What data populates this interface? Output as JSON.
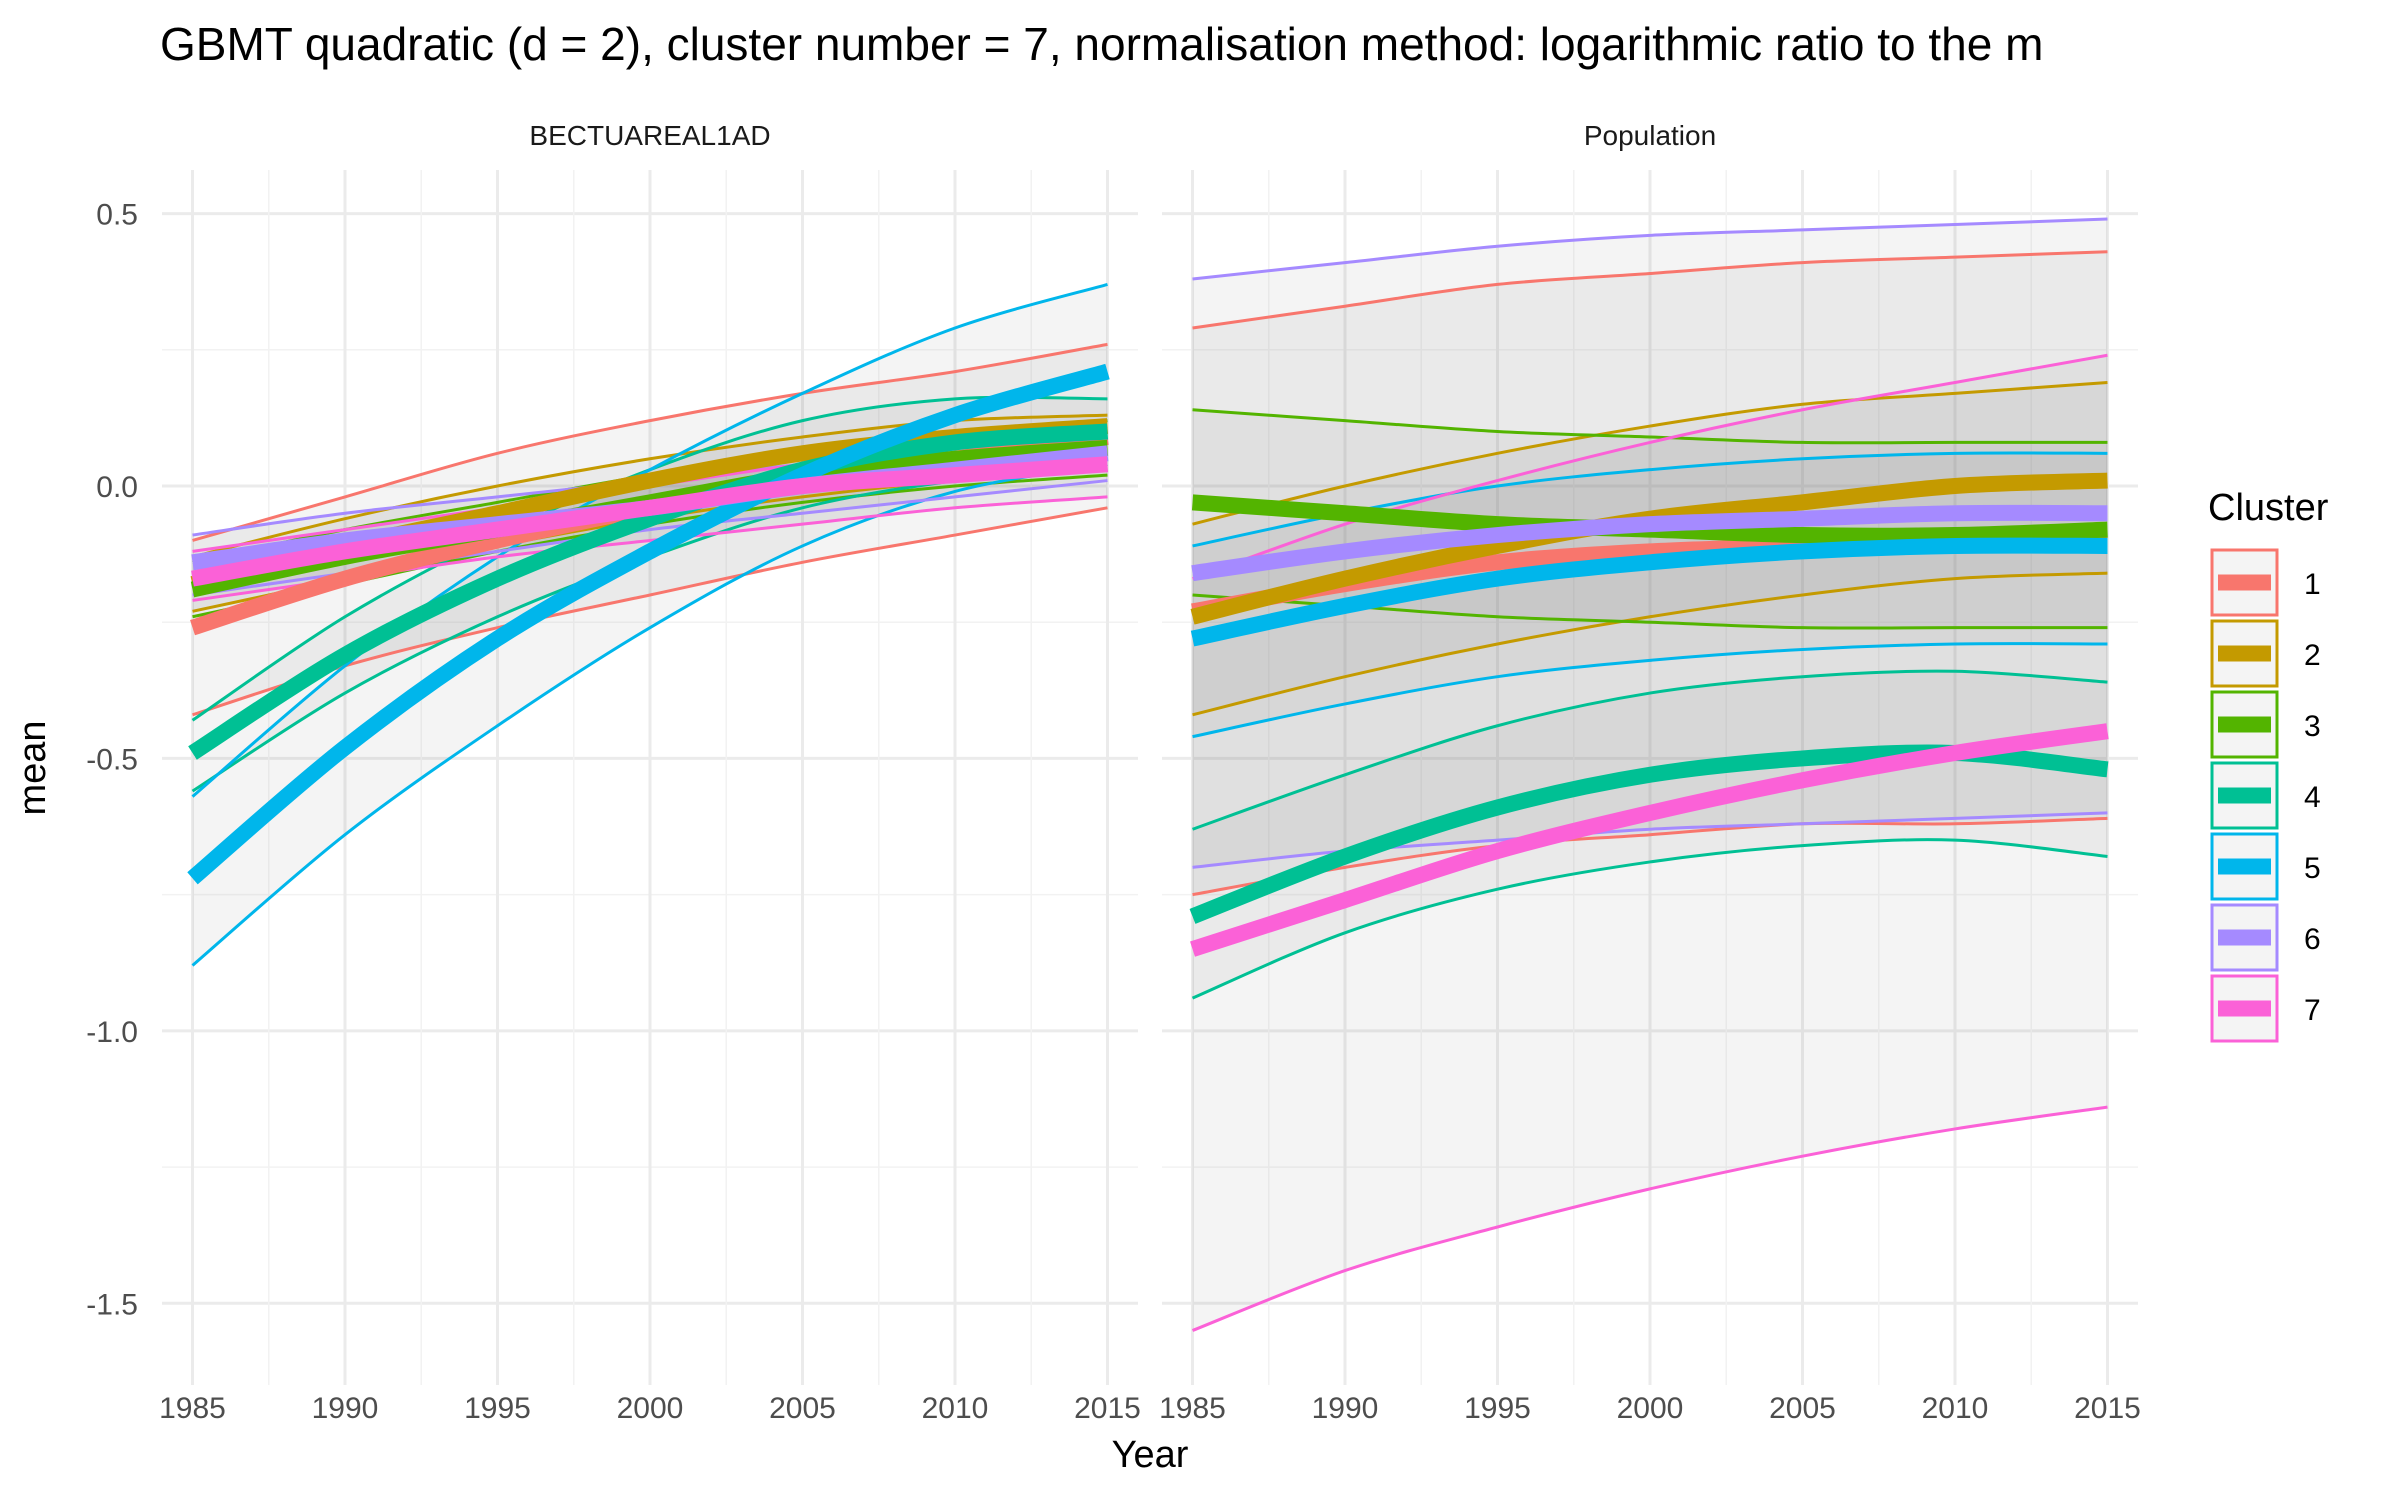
{
  "chart_data": {
    "type": "line",
    "title": "GBMT quadratic (d = 2), cluster number = 7, normalisation method: logarithmic ratio to the m",
    "xlabel": "Year",
    "ylabel": "mean",
    "x": [
      1985,
      1990,
      1995,
      2000,
      2005,
      2010,
      2015
    ],
    "x_ticks": [
      "1985",
      "1990",
      "1995",
      "2000",
      "2005",
      "2010",
      "2015"
    ],
    "xlim": [
      1984,
      2016
    ],
    "y_ticks": [
      0.5,
      0.0,
      -0.5,
      -1.0,
      -1.5
    ],
    "y_tick_labels": [
      "0.5",
      "0.0",
      "-0.5",
      "-1.0",
      "-1.5"
    ],
    "ylim": [
      -1.65,
      0.58
    ],
    "grid": true,
    "legend": {
      "title": "Cluster",
      "position": "right",
      "entries": [
        "1",
        "2",
        "3",
        "4",
        "5",
        "6",
        "7"
      ]
    },
    "colors": {
      "1": "#F8766D",
      "2": "#C49A00",
      "3": "#53B400",
      "4": "#00C094",
      "5": "#00B6EB",
      "6": "#A58AFF",
      "7": "#FB61D7"
    },
    "panels": [
      {
        "name": "BECTUAREAL1AD",
        "series": [
          {
            "cluster": "1",
            "mean": [
              -0.26,
              -0.17,
              -0.1,
              -0.04,
              0.01,
              0.05,
              0.09
            ],
            "lower": [
              -0.42,
              -0.33,
              -0.26,
              -0.2,
              -0.14,
              -0.09,
              -0.04
            ],
            "upper": [
              -0.1,
              -0.02,
              0.06,
              0.12,
              0.17,
              0.21,
              0.26
            ]
          },
          {
            "cluster": "2",
            "mean": [
              -0.18,
              -0.11,
              -0.05,
              0.01,
              0.06,
              0.09,
              0.11
            ],
            "lower": [
              -0.23,
              -0.17,
              -0.11,
              -0.06,
              -0.02,
              0.01,
              0.03
            ],
            "upper": [
              -0.13,
              -0.06,
              0.0,
              0.05,
              0.09,
              0.12,
              0.13
            ]
          },
          {
            "cluster": "3",
            "mean": [
              -0.19,
              -0.13,
              -0.08,
              -0.03,
              0.02,
              0.05,
              0.07
            ],
            "lower": [
              -0.24,
              -0.18,
              -0.12,
              -0.07,
              -0.03,
              0.0,
              0.02
            ],
            "upper": [
              -0.14,
              -0.08,
              -0.03,
              0.02,
              0.06,
              0.09,
              0.12
            ]
          },
          {
            "cluster": "4",
            "mean": [
              -0.49,
              -0.31,
              -0.17,
              -0.06,
              0.03,
              0.08,
              0.1
            ],
            "lower": [
              -0.56,
              -0.38,
              -0.24,
              -0.13,
              -0.04,
              0.01,
              0.04
            ],
            "upper": [
              -0.43,
              -0.24,
              -0.09,
              0.03,
              0.12,
              0.16,
              0.16
            ]
          },
          {
            "cluster": "5",
            "mean": [
              -0.72,
              -0.48,
              -0.28,
              -0.12,
              0.02,
              0.13,
              0.21
            ],
            "lower": [
              -0.88,
              -0.64,
              -0.44,
              -0.26,
              -0.11,
              -0.01,
              0.04
            ],
            "upper": [
              -0.57,
              -0.33,
              -0.13,
              0.03,
              0.17,
              0.29,
              0.37
            ]
          },
          {
            "cluster": "6",
            "mean": [
              -0.14,
              -0.1,
              -0.07,
              -0.04,
              0.0,
              0.03,
              0.06
            ],
            "lower": [
              -0.2,
              -0.16,
              -0.12,
              -0.08,
              -0.05,
              -0.02,
              0.01
            ],
            "upper": [
              -0.09,
              -0.05,
              -0.02,
              0.01,
              0.04,
              0.07,
              0.11
            ]
          },
          {
            "cluster": "7",
            "mean": [
              -0.17,
              -0.12,
              -0.08,
              -0.04,
              0.0,
              0.02,
              0.04
            ],
            "lower": [
              -0.21,
              -0.17,
              -0.13,
              -0.1,
              -0.07,
              -0.04,
              -0.02
            ],
            "upper": [
              -0.12,
              -0.08,
              -0.04,
              0.0,
              0.04,
              0.07,
              0.1
            ]
          }
        ]
      },
      {
        "name": "Population",
        "series": [
          {
            "cluster": "1",
            "mean": [
              -0.23,
              -0.18,
              -0.14,
              -0.12,
              -0.11,
              -0.1,
              -0.1
            ],
            "lower": [
              -0.75,
              -0.7,
              -0.66,
              -0.64,
              -0.62,
              -0.62,
              -0.61
            ],
            "upper": [
              0.29,
              0.33,
              0.37,
              0.39,
              0.41,
              0.42,
              0.43
            ]
          },
          {
            "cluster": "2",
            "mean": [
              -0.24,
              -0.17,
              -0.11,
              -0.06,
              -0.03,
              0.0,
              0.01
            ],
            "lower": [
              -0.42,
              -0.35,
              -0.29,
              -0.24,
              -0.2,
              -0.17,
              -0.16
            ],
            "upper": [
              -0.07,
              0.0,
              0.06,
              0.11,
              0.15,
              0.17,
              0.19
            ]
          },
          {
            "cluster": "3",
            "mean": [
              -0.03,
              -0.05,
              -0.07,
              -0.08,
              -0.09,
              -0.09,
              -0.08
            ],
            "lower": [
              -0.2,
              -0.22,
              -0.24,
              -0.25,
              -0.26,
              -0.26,
              -0.26
            ],
            "upper": [
              0.14,
              0.12,
              0.1,
              0.09,
              0.08,
              0.08,
              0.08
            ]
          },
          {
            "cluster": "4",
            "mean": [
              -0.79,
              -0.68,
              -0.59,
              -0.53,
              -0.5,
              -0.49,
              -0.52
            ],
            "lower": [
              -0.94,
              -0.82,
              -0.74,
              -0.69,
              -0.66,
              -0.65,
              -0.68
            ],
            "upper": [
              -0.63,
              -0.53,
              -0.44,
              -0.38,
              -0.35,
              -0.34,
              -0.36
            ]
          },
          {
            "cluster": "5",
            "mean": [
              -0.28,
              -0.22,
              -0.17,
              -0.14,
              -0.12,
              -0.11,
              -0.11
            ],
            "lower": [
              -0.46,
              -0.4,
              -0.35,
              -0.32,
              -0.3,
              -0.29,
              -0.29
            ],
            "upper": [
              -0.11,
              -0.05,
              0.0,
              0.03,
              0.05,
              0.06,
              0.06
            ]
          },
          {
            "cluster": "6",
            "mean": [
              -0.16,
              -0.12,
              -0.09,
              -0.07,
              -0.06,
              -0.05,
              -0.05
            ],
            "lower": [
              -0.7,
              -0.67,
              -0.65,
              -0.63,
              -0.62,
              -0.61,
              -0.6
            ],
            "upper": [
              0.38,
              0.41,
              0.44,
              0.46,
              0.47,
              0.48,
              0.49
            ]
          },
          {
            "cluster": "7",
            "mean": [
              -0.85,
              -0.76,
              -0.67,
              -0.6,
              -0.54,
              -0.49,
              -0.45
            ],
            "lower": [
              -1.55,
              -1.44,
              -1.36,
              -1.29,
              -1.23,
              -1.18,
              -1.14
            ],
            "upper": [
              -0.17,
              -0.07,
              0.01,
              0.08,
              0.14,
              0.19,
              0.24
            ]
          }
        ]
      }
    ]
  }
}
